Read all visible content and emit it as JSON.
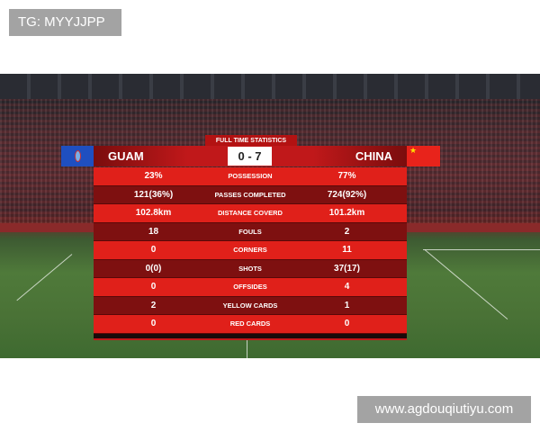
{
  "watermarks": {
    "top_left": "TG: MYYJJPP",
    "bottom_right": "www.agdouqiutiyu.com"
  },
  "scoreboard": {
    "title": "FULL TIME STATISTICS",
    "home": {
      "name": "GUAM",
      "flag_color": "#1f4fc0"
    },
    "away": {
      "name": "CHINA",
      "flag_color": "#e8231b"
    },
    "score": "0 - 7",
    "stats": [
      {
        "label": "POSSESSION",
        "home": "23%",
        "away": "77%"
      },
      {
        "label": "PASSES COMPLETED",
        "home": "121(36%)",
        "away": "724(92%)"
      },
      {
        "label": "DISTANCE COVERD",
        "home": "102.8km",
        "away": "101.2km"
      },
      {
        "label": "FOULS",
        "home": "18",
        "away": "2"
      },
      {
        "label": "CORNERS",
        "home": "0",
        "away": "11"
      },
      {
        "label": "SHOTS",
        "home": "0(0)",
        "away": "37(17)"
      },
      {
        "label": "OFFSIDES",
        "home": "0",
        "away": "4"
      },
      {
        "label": "YELLOW CARDS",
        "home": "2",
        "away": "1"
      },
      {
        "label": "RED CARDS",
        "home": "0",
        "away": "0"
      }
    ]
  }
}
